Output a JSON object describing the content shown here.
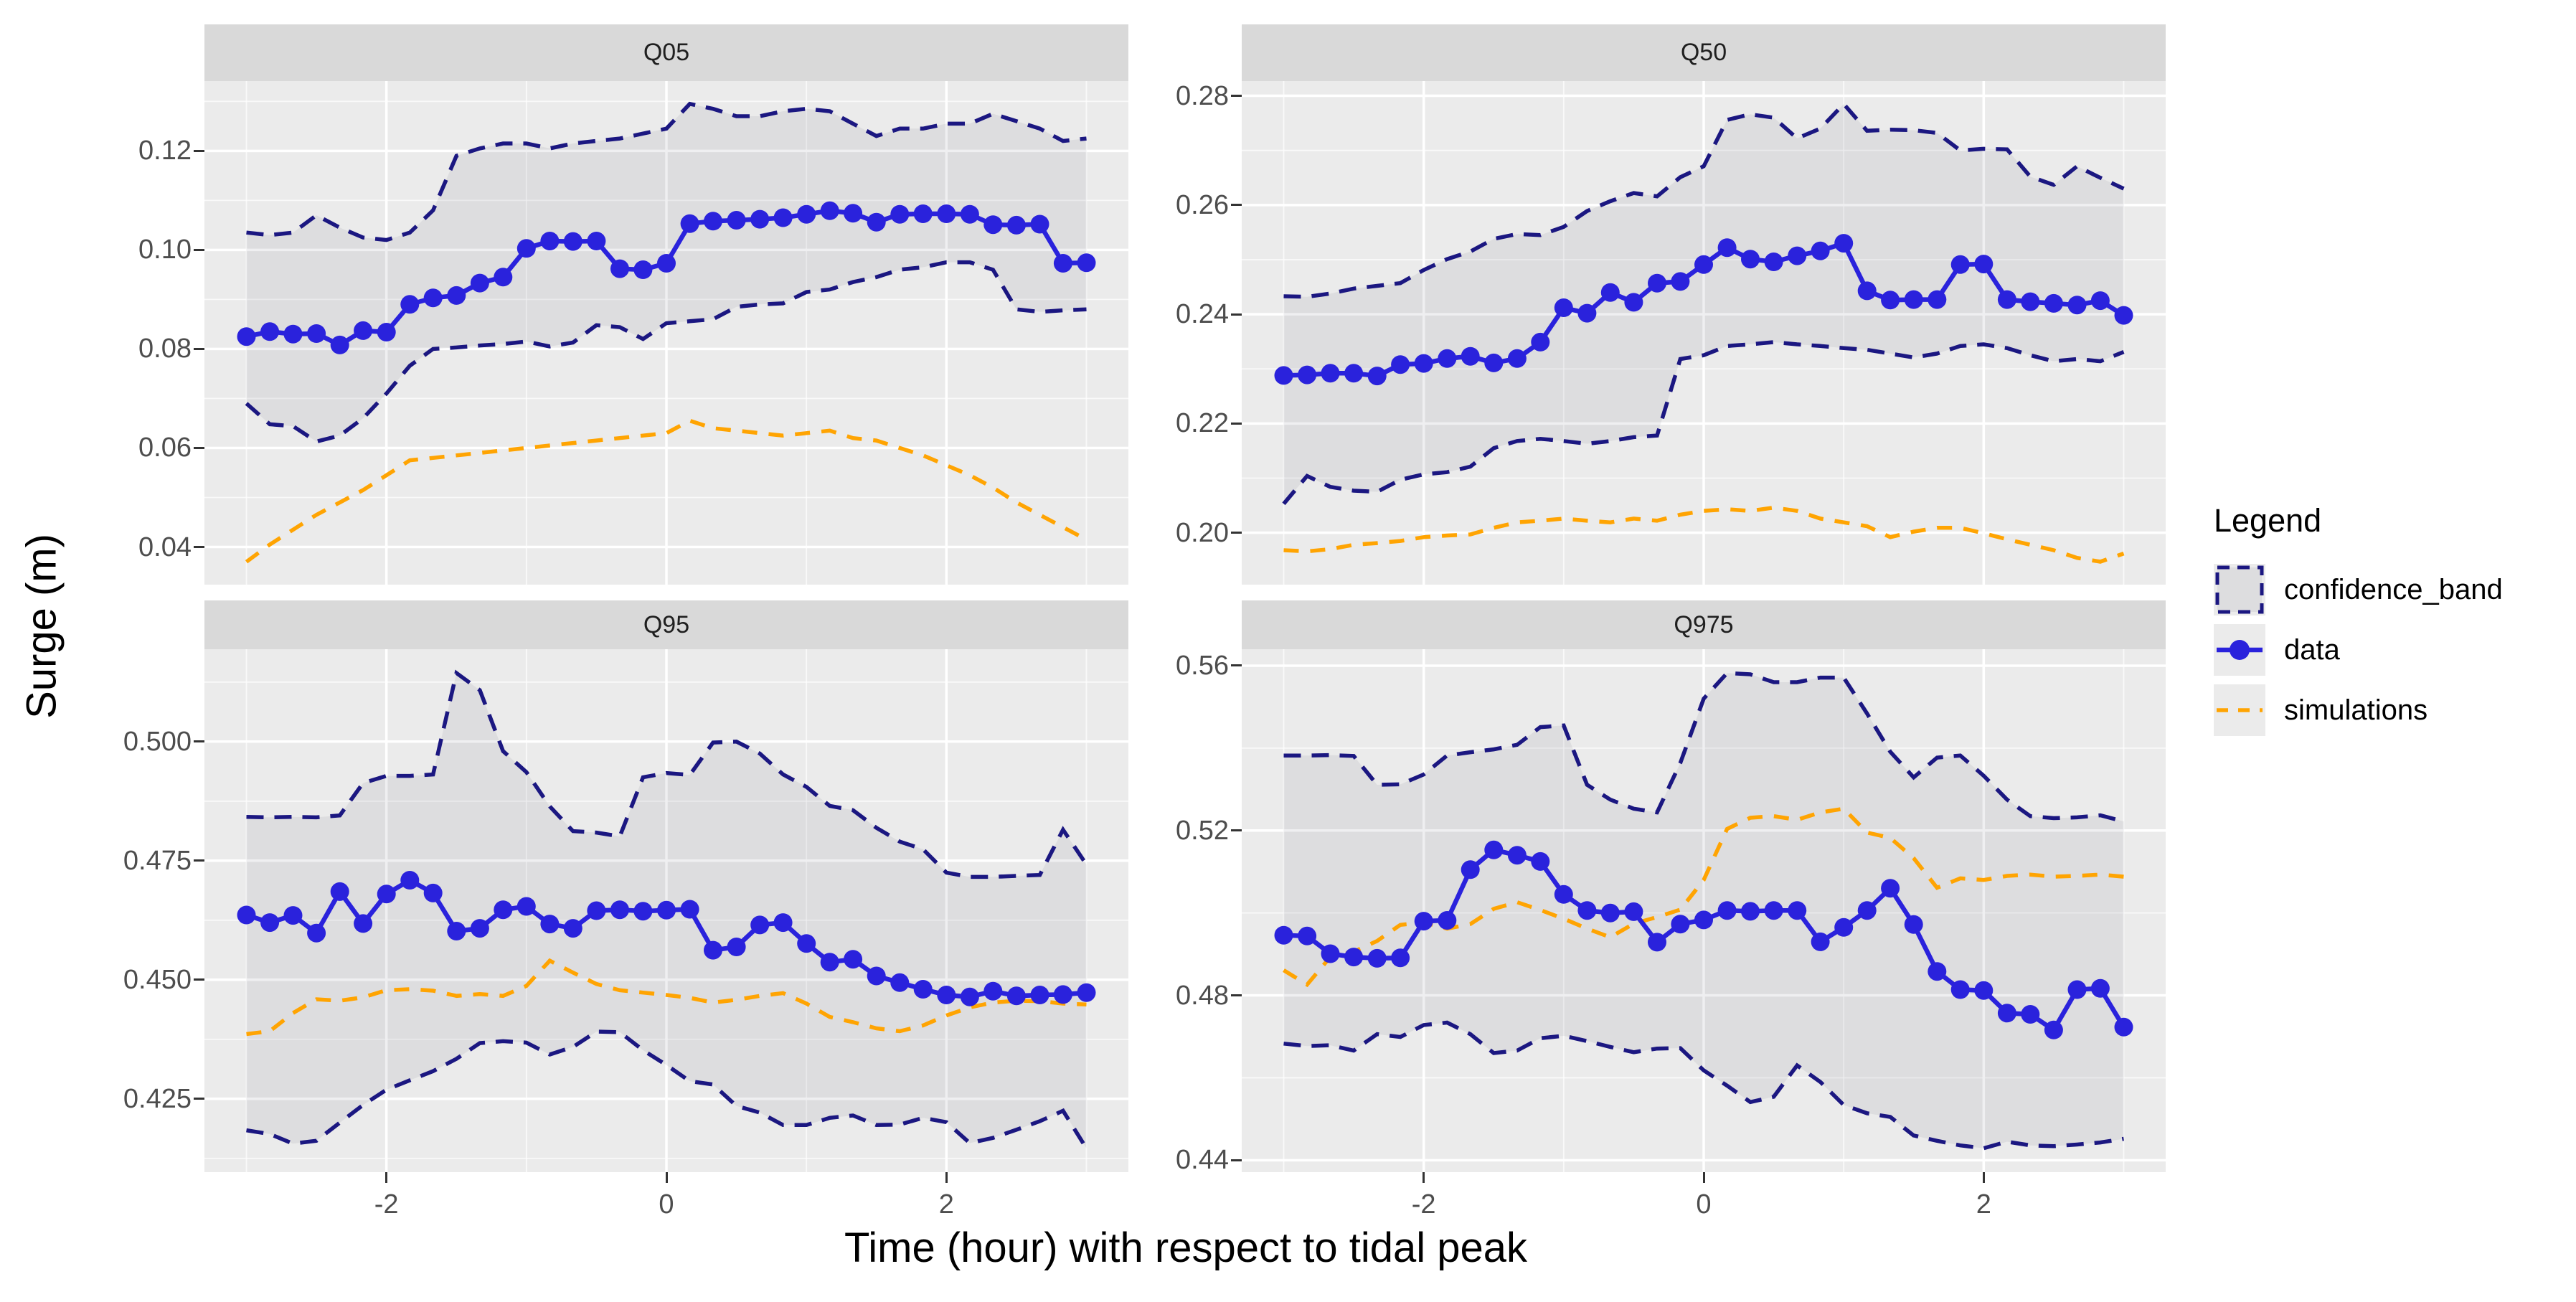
{
  "figure": {
    "x_axis_title": "Time (hour) with respect to tidal peak",
    "y_axis_title": "Surge (m)"
  },
  "colors": {
    "panel_bg": "#EBEBEB",
    "strip_bg": "#D9D9D9",
    "grid": "#FFFFFF",
    "tick_text": "#4D4D4D",
    "tick_mark": "#333333",
    "confidence_band_line": "#1B1781",
    "confidence_band_fill": "rgba(100,100,115,0.10)",
    "data_line": "#2A22DC",
    "simulations_line": "#FFA402"
  },
  "legend": {
    "title": "Legend",
    "items": [
      {
        "label": "confidence_band",
        "type": "band"
      },
      {
        "label": "data",
        "type": "line-point"
      },
      {
        "label": "simulations",
        "type": "dashed-line"
      }
    ]
  },
  "x_axis": {
    "domain": [
      -3.3,
      3.3
    ],
    "tick_values": [
      -2,
      0,
      2
    ],
    "tick_labels": [
      "-2",
      "0",
      "2"
    ],
    "minor_values": [
      -3,
      -1,
      1,
      3
    ]
  },
  "chart_data": [
    {
      "type": "line",
      "title": "Q05",
      "ylim": [
        0.0324,
        0.1341
      ],
      "y_ticks": {
        "values": [
          0.12,
          0.1,
          0.08,
          0.06,
          0.04
        ],
        "labels": [
          "0.12",
          "0.10",
          "0.08",
          "0.06",
          "0.04"
        ]
      },
      "x": [
        -3,
        -2.833,
        -2.667,
        -2.5,
        -2.333,
        -2.167,
        -2,
        -1.833,
        -1.667,
        -1.5,
        -1.333,
        -1.167,
        -1,
        -0.833,
        -0.667,
        -0.5,
        -0.333,
        -0.167,
        0,
        0.167,
        0.333,
        0.5,
        0.667,
        0.833,
        1,
        1.167,
        1.333,
        1.5,
        1.667,
        1.833,
        2,
        2.167,
        2.333,
        2.5,
        2.667,
        2.833,
        3
      ],
      "series": [
        {
          "name": "confidence_band_upper",
          "role": "band",
          "values": [
            0.1035,
            0.103,
            0.1035,
            0.107,
            0.1045,
            0.1025,
            0.102,
            0.1035,
            0.108,
            0.119,
            0.1205,
            0.1215,
            0.1215,
            0.1205,
            0.1215,
            0.122,
            0.1225,
            0.1235,
            0.1245,
            0.1295,
            0.1285,
            0.127,
            0.127,
            0.128,
            0.1285,
            0.128,
            0.1255,
            0.123,
            0.1245,
            0.1245,
            0.1255,
            0.1255,
            0.1275,
            0.126,
            0.1245,
            0.122,
            0.1225
          ]
        },
        {
          "name": "confidence_band_lower",
          "role": "band",
          "values": [
            0.069,
            0.0648,
            0.0644,
            0.0613,
            0.0625,
            0.066,
            0.071,
            0.0766,
            0.08,
            0.0803,
            0.0807,
            0.081,
            0.0815,
            0.0805,
            0.0813,
            0.0848,
            0.0844,
            0.082,
            0.0852,
            0.0856,
            0.086,
            0.0885,
            0.089,
            0.0892,
            0.0915,
            0.092,
            0.0935,
            0.0945,
            0.096,
            0.0965,
            0.0975,
            0.0975,
            0.096,
            0.088,
            0.0875,
            0.0878,
            0.088
          ]
        },
        {
          "name": "data",
          "role": "data",
          "values": [
            0.0825,
            0.0835,
            0.083,
            0.0831,
            0.0808,
            0.0837,
            0.0834,
            0.089,
            0.0903,
            0.0908,
            0.0933,
            0.0945,
            0.1003,
            0.1018,
            0.1017,
            0.1018,
            0.0962,
            0.096,
            0.0973,
            0.1053,
            0.1058,
            0.106,
            0.1062,
            0.1065,
            0.1072,
            0.1079,
            0.1074,
            0.1056,
            0.1072,
            0.1073,
            0.1073,
            0.1072,
            0.1051,
            0.105,
            0.1052,
            0.0973,
            0.0974
          ]
        },
        {
          "name": "simulations",
          "role": "simulations",
          "values": [
            0.037,
            0.0405,
            0.0435,
            0.0465,
            0.049,
            0.0515,
            0.0545,
            0.0575,
            0.058,
            0.0585,
            0.059,
            0.0595,
            0.06,
            0.0605,
            0.061,
            0.0615,
            0.062,
            0.0625,
            0.063,
            0.0655,
            0.064,
            0.0635,
            0.063,
            0.0625,
            0.063,
            0.0635,
            0.062,
            0.0615,
            0.06,
            0.0585,
            0.0565,
            0.0545,
            0.052,
            0.049,
            0.0465,
            0.044,
            0.0415
          ]
        }
      ]
    },
    {
      "type": "line",
      "title": "Q50",
      "ylim": [
        0.1905,
        0.2827
      ],
      "y_ticks": {
        "values": [
          0.28,
          0.26,
          0.24,
          0.22,
          0.2
        ],
        "labels": [
          "0.28",
          "0.26",
          "0.24",
          "0.22",
          "0.20"
        ]
      },
      "x": [
        -3,
        -2.833,
        -2.667,
        -2.5,
        -2.333,
        -2.167,
        -2,
        -1.833,
        -1.667,
        -1.5,
        -1.333,
        -1.167,
        -1,
        -0.833,
        -0.667,
        -0.5,
        -0.333,
        -0.167,
        0,
        0.167,
        0.333,
        0.5,
        0.667,
        0.833,
        1,
        1.167,
        1.333,
        1.5,
        1.667,
        1.833,
        2,
        2.167,
        2.333,
        2.5,
        2.667,
        2.833,
        3
      ],
      "series": [
        {
          "name": "confidence_band_upper",
          "role": "band",
          "values": [
            0.2433,
            0.2432,
            0.2438,
            0.2447,
            0.2452,
            0.2457,
            0.2481,
            0.2501,
            0.2515,
            0.2538,
            0.2547,
            0.2545,
            0.256,
            0.2589,
            0.2607,
            0.2622,
            0.2616,
            0.2651,
            0.2671,
            0.2756,
            0.2766,
            0.276,
            0.2722,
            0.274,
            0.2785,
            0.2736,
            0.2738,
            0.2737,
            0.2732,
            0.27,
            0.2703,
            0.2702,
            0.2652,
            0.2637,
            0.2671,
            0.265,
            0.263
          ]
        },
        {
          "name": "confidence_band_lower",
          "role": "band",
          "values": [
            0.2053,
            0.2104,
            0.2084,
            0.2077,
            0.2075,
            0.2097,
            0.2107,
            0.2111,
            0.2121,
            0.2155,
            0.2168,
            0.2172,
            0.2168,
            0.2163,
            0.2168,
            0.2175,
            0.2178,
            0.2318,
            0.2325,
            0.2342,
            0.2345,
            0.2349,
            0.2345,
            0.2342,
            0.2338,
            0.2335,
            0.2328,
            0.2321,
            0.2328,
            0.2342,
            0.2345,
            0.2338,
            0.2325,
            0.2314,
            0.2318,
            0.2314,
            0.2331
          ]
        },
        {
          "name": "data",
          "role": "data",
          "values": [
            0.2288,
            0.2289,
            0.2292,
            0.2292,
            0.2287,
            0.2308,
            0.231,
            0.2319,
            0.2323,
            0.2311,
            0.2319,
            0.2349,
            0.2412,
            0.2402,
            0.244,
            0.2422,
            0.2457,
            0.246,
            0.2491,
            0.2522,
            0.2501,
            0.2496,
            0.2507,
            0.2516,
            0.253,
            0.2443,
            0.2426,
            0.2427,
            0.2427,
            0.2491,
            0.2492,
            0.2427,
            0.2423,
            0.242,
            0.2417,
            0.2425,
            0.2398
          ]
        },
        {
          "name": "simulations",
          "role": "simulations",
          "values": [
            0.1968,
            0.1966,
            0.197,
            0.1978,
            0.1981,
            0.1985,
            0.1992,
            0.1995,
            0.1997,
            0.2009,
            0.2019,
            0.2022,
            0.2026,
            0.2022,
            0.2019,
            0.2026,
            0.2022,
            0.2033,
            0.204,
            0.2043,
            0.204,
            0.2046,
            0.204,
            0.2026,
            0.2019,
            0.2012,
            0.1992,
            0.2002,
            0.2009,
            0.2009,
            0.1999,
            0.1988,
            0.1978,
            0.1968,
            0.1954,
            0.1947,
            0.1962
          ]
        }
      ]
    },
    {
      "type": "line",
      "title": "Q95",
      "ylim": [
        0.4096,
        0.5194
      ],
      "y_ticks": {
        "values": [
          0.5,
          0.475,
          0.45,
          0.425
        ],
        "labels": [
          "0.500",
          "0.475",
          "0.450",
          "0.425"
        ]
      },
      "x": [
        -3,
        -2.833,
        -2.667,
        -2.5,
        -2.333,
        -2.167,
        -2,
        -1.833,
        -1.667,
        -1.5,
        -1.333,
        -1.167,
        -1,
        -0.833,
        -0.667,
        -0.5,
        -0.333,
        -0.167,
        0,
        0.167,
        0.333,
        0.5,
        0.667,
        0.833,
        1,
        1.167,
        1.333,
        1.5,
        1.667,
        1.833,
        2,
        2.167,
        2.333,
        2.5,
        2.667,
        2.833,
        3
      ],
      "series": [
        {
          "name": "confidence_band_upper",
          "role": "band",
          "values": [
            0.4842,
            0.4841,
            0.4842,
            0.4841,
            0.4845,
            0.4913,
            0.4928,
            0.4928,
            0.4931,
            0.5144,
            0.5108,
            0.498,
            0.4936,
            0.4864,
            0.4812,
            0.4809,
            0.4801,
            0.4925,
            0.4934,
            0.493,
            0.4998,
            0.5,
            0.4975,
            0.4931,
            0.4905,
            0.4865,
            0.4856,
            0.4819,
            0.479,
            0.4774,
            0.4725,
            0.4716,
            0.4716,
            0.4718,
            0.472,
            0.4815,
            0.4742
          ]
        },
        {
          "name": "confidence_band_lower",
          "role": "band",
          "values": [
            0.4184,
            0.4176,
            0.4156,
            0.4162,
            0.42,
            0.4237,
            0.4269,
            0.4289,
            0.4308,
            0.4334,
            0.4367,
            0.4371,
            0.4368,
            0.4343,
            0.4359,
            0.4391,
            0.439,
            0.4352,
            0.4321,
            0.4287,
            0.428,
            0.4235,
            0.4221,
            0.4195,
            0.4195,
            0.421,
            0.4215,
            0.4195,
            0.4196,
            0.421,
            0.4201,
            0.4157,
            0.4168,
            0.4185,
            0.4203,
            0.4225,
            0.4146
          ]
        },
        {
          "name": "data",
          "role": "data",
          "values": [
            0.4636,
            0.462,
            0.4635,
            0.4598,
            0.4685,
            0.4618,
            0.468,
            0.4709,
            0.4682,
            0.4602,
            0.4608,
            0.4647,
            0.4654,
            0.4617,
            0.4608,
            0.4645,
            0.4647,
            0.4644,
            0.4646,
            0.4648,
            0.4562,
            0.4569,
            0.4615,
            0.462,
            0.4576,
            0.4537,
            0.4543,
            0.4508,
            0.4494,
            0.448,
            0.4468,
            0.4464,
            0.4476,
            0.4466,
            0.4468,
            0.4469,
            0.4473
          ]
        },
        {
          "name": "simulations",
          "role": "simulations",
          "values": [
            0.4386,
            0.4392,
            0.443,
            0.4459,
            0.4456,
            0.4463,
            0.4478,
            0.448,
            0.4477,
            0.4466,
            0.447,
            0.4466,
            0.4487,
            0.454,
            0.4515,
            0.4491,
            0.4478,
            0.4473,
            0.4468,
            0.4462,
            0.4452,
            0.4458,
            0.4466,
            0.4472,
            0.445,
            0.4422,
            0.4411,
            0.4398,
            0.4392,
            0.4404,
            0.4425,
            0.4442,
            0.4452,
            0.4456,
            0.4455,
            0.445,
            0.4448
          ]
        }
      ]
    },
    {
      "type": "line",
      "title": "Q975",
      "ylim": [
        0.4371,
        0.564
      ],
      "y_ticks": {
        "values": [
          0.56,
          0.52,
          0.48,
          0.44
        ],
        "labels": [
          "0.56",
          "0.52",
          "0.48",
          "0.44"
        ]
      },
      "x": [
        -3,
        -2.833,
        -2.667,
        -2.5,
        -2.333,
        -2.167,
        -2,
        -1.833,
        -1.667,
        -1.5,
        -1.333,
        -1.167,
        -1,
        -0.833,
        -0.667,
        -0.5,
        -0.333,
        -0.167,
        0,
        0.167,
        0.333,
        0.5,
        0.667,
        0.833,
        1,
        1.167,
        1.333,
        1.5,
        1.667,
        1.833,
        2,
        2.167,
        2.333,
        2.5,
        2.667,
        2.833,
        3
      ],
      "series": [
        {
          "name": "confidence_band_upper",
          "role": "band",
          "values": [
            0.5382,
            0.5382,
            0.5383,
            0.5381,
            0.5311,
            0.5312,
            0.5336,
            0.5382,
            0.539,
            0.5397,
            0.5408,
            0.5451,
            0.5455,
            0.5311,
            0.5275,
            0.5253,
            0.5244,
            0.5364,
            0.552,
            0.5582,
            0.5579,
            0.556,
            0.556,
            0.5571,
            0.5571,
            0.5484,
            0.5391,
            0.5329,
            0.5377,
            0.5382,
            0.5333,
            0.5275,
            0.5235,
            0.523,
            0.5232,
            0.5237,
            0.5222
          ]
        },
        {
          "name": "confidence_band_lower",
          "role": "band",
          "values": [
            0.4683,
            0.4677,
            0.4679,
            0.4666,
            0.4706,
            0.4699,
            0.4728,
            0.4734,
            0.4706,
            0.466,
            0.4666,
            0.4696,
            0.4702,
            0.4689,
            0.4675,
            0.4662,
            0.4671,
            0.4672,
            0.4618,
            0.4581,
            0.4541,
            0.4554,
            0.463,
            0.459,
            0.4534,
            0.4514,
            0.4505,
            0.446,
            0.4447,
            0.4436,
            0.4429,
            0.4445,
            0.4436,
            0.4434,
            0.4438,
            0.4443,
            0.4452
          ]
        },
        {
          "name": "data",
          "role": "data",
          "values": [
            0.4946,
            0.4944,
            0.4901,
            0.4893,
            0.489,
            0.4891,
            0.498,
            0.4982,
            0.5105,
            0.5153,
            0.514,
            0.5125,
            0.5045,
            0.5006,
            0.5,
            0.5003,
            0.4929,
            0.4973,
            0.4983,
            0.5006,
            0.5004,
            0.5006,
            0.5006,
            0.493,
            0.4965,
            0.5006,
            0.506,
            0.4972,
            0.4858,
            0.4814,
            0.4812,
            0.4757,
            0.4754,
            0.4716,
            0.4814,
            0.4817,
            0.4723
          ]
        },
        {
          "name": "simulations",
          "role": "simulations",
          "values": [
            0.4861,
            0.4826,
            0.4893,
            0.4906,
            0.4932,
            0.4971,
            0.4977,
            0.4962,
            0.4973,
            0.501,
            0.5026,
            0.5007,
            0.4986,
            0.4962,
            0.4941,
            0.4974,
            0.499,
            0.5008,
            0.508,
            0.5204,
            0.5231,
            0.5235,
            0.5226,
            0.5244,
            0.5253,
            0.5195,
            0.5182,
            0.5133,
            0.5061,
            0.5084,
            0.508,
            0.509,
            0.5093,
            0.5088,
            0.509,
            0.5093,
            0.5088
          ]
        }
      ]
    }
  ]
}
